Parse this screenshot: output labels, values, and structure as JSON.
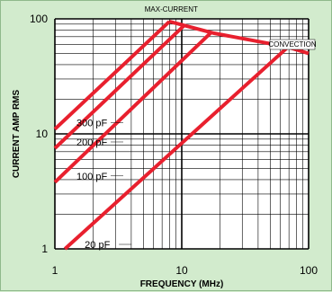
{
  "chart_data": {
    "type": "line",
    "xlabel": "FREQUENCY (MHz)",
    "ylabel": "CURRENT AMP RMS",
    "xscale": "log",
    "yscale": "log",
    "xlim": [
      1,
      100
    ],
    "ylim": [
      1,
      100
    ],
    "x_ticks": [
      "1",
      "10",
      "100"
    ],
    "y_ticks": [
      "1",
      "10",
      "100"
    ],
    "grid": true,
    "colors": {
      "series": "#e8202e",
      "background": "#d2ebcd",
      "plot": "#ffffff",
      "grid": "#000000"
    },
    "series": [
      {
        "name": "300 pF",
        "points": [
          [
            1,
            11
          ],
          [
            8,
            95
          ]
        ]
      },
      {
        "name": "200 pF",
        "points": [
          [
            1,
            7.5
          ],
          [
            10.5,
            88
          ]
        ]
      },
      {
        "name": "100 pF",
        "points": [
          [
            1,
            3.8
          ],
          [
            17,
            76
          ]
        ]
      },
      {
        "name": "20 pF",
        "points": [
          [
            1.2,
            1
          ],
          [
            70,
            58
          ]
        ]
      }
    ],
    "envelope": {
      "points": [
        [
          8,
          95
        ],
        [
          18,
          75
        ],
        [
          68,
          57
        ],
        [
          100,
          50
        ]
      ]
    },
    "annotations": [
      "MAX-CURRENT",
      "CONVECTION"
    ]
  }
}
